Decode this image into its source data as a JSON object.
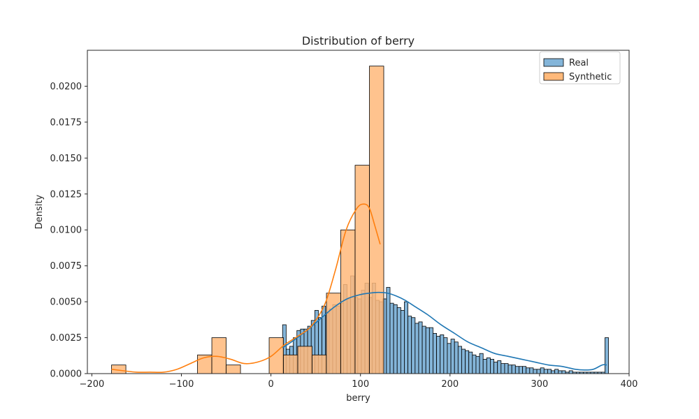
{
  "chart_data": {
    "type": "histogram",
    "title": "Distribution of berry",
    "xlabel": "berry",
    "ylabel": "Density",
    "xlim": [
      -205,
      400
    ],
    "ylim": [
      0,
      0.0225
    ],
    "x_ticks": [
      -200,
      -100,
      0,
      100,
      200,
      300,
      400
    ],
    "x_tick_labels": [
      "−200",
      "−100",
      "0",
      "100",
      "200",
      "300",
      "400"
    ],
    "y_ticks": [
      0,
      0.0025,
      0.005,
      0.0075,
      0.01,
      0.0125,
      0.015,
      0.0175,
      0.02
    ],
    "y_tick_labels": [
      "0.0000",
      "0.0025",
      "0.0050",
      "0.0075",
      "0.0100",
      "0.0125",
      "0.0150",
      "0.0175",
      "0.0200"
    ],
    "legend": {
      "placement": "top-right",
      "entries": [
        "Real",
        "Synthetic"
      ]
    },
    "grid": false,
    "series": [
      {
        "name": "Real",
        "color": "#1f77b4",
        "fill": "#84b5d9",
        "bins": {
          "start": 13,
          "end": 375,
          "width": 4
        },
        "density": [
          0.0034,
          0.0017,
          0.0019,
          0.0025,
          0.003,
          0.0031,
          0.0031,
          0.0033,
          0.0037,
          0.0044,
          0.0039,
          0.0047,
          0.0042,
          0.0045,
          0.0048,
          0.0047,
          0.0049,
          0.0062,
          0.0052,
          0.0068,
          0.0053,
          0.0052,
          0.0058,
          0.0063,
          0.0053,
          0.0063,
          0.0051,
          0.005,
          0.0052,
          0.006,
          0.0049,
          0.0048,
          0.0046,
          0.0044,
          0.005,
          0.004,
          0.0039,
          0.0035,
          0.0036,
          0.0033,
          0.0032,
          0.0032,
          0.0028,
          0.0026,
          0.0027,
          0.0025,
          0.0021,
          0.0024,
          0.0022,
          0.0019,
          0.0017,
          0.0016,
          0.0015,
          0.0013,
          0.0012,
          0.0014,
          0.001,
          0.0011,
          0.001,
          0.0008,
          0.0009,
          0.0007,
          0.0007,
          0.0006,
          0.0006,
          0.0005,
          0.0005,
          0.0005,
          0.0004,
          0.0004,
          0.0003,
          0.0003,
          0.0004,
          0.0003,
          0.0003,
          0.0002,
          0.0003,
          0.0002,
          0.0002,
          0.0001,
          0.0002,
          0.0001,
          0.0001,
          0.0001,
          0.0001,
          0.0001,
          0.0001,
          0.0001,
          0.0001,
          0.0001,
          0.0025
        ],
        "kde": {
          "x": [
            13,
            25,
            40,
            55,
            70,
            85,
            100,
            110,
            120,
            130,
            140,
            150,
            160,
            175,
            190,
            205,
            220,
            235,
            250,
            265,
            280,
            295,
            310,
            325,
            340,
            350,
            360,
            370,
            375
          ],
          "y": [
            0.0018,
            0.0023,
            0.003,
            0.0038,
            0.0046,
            0.0052,
            0.0055,
            0.0056,
            0.00565,
            0.0056,
            0.0054,
            0.0051,
            0.0047,
            0.0041,
            0.0034,
            0.0028,
            0.0022,
            0.0018,
            0.0014,
            0.0012,
            0.001,
            0.0008,
            0.0006,
            0.0005,
            0.0003,
            0.00025,
            0.0003,
            0.0006,
            0.0006
          ]
        }
      },
      {
        "name": "Synthetic",
        "color": "#ff7f0e",
        "fill": "#ffb97a",
        "bins": {
          "start": -178,
          "end": 124,
          "width": 16
        },
        "density": [
          0.0006,
          0,
          0,
          0,
          0,
          0,
          0.0013,
          0.0025,
          0.0006,
          0,
          0,
          0.0025,
          0.0013,
          0.0019,
          0.0013,
          0.0056,
          0.01,
          0.0145,
          0.0214
        ],
        "kde": {
          "x": [
            -178,
            -165,
            -150,
            -135,
            -120,
            -105,
            -90,
            -75,
            -60,
            -45,
            -30,
            -15,
            0,
            15,
            30,
            45,
            60,
            72,
            84,
            96,
            104,
            110,
            116,
            122
          ],
          "y": [
            0.0003,
            0.0002,
            0.0001,
            0.0001,
            0.0001,
            0.0003,
            0.0007,
            0.0011,
            0.0012,
            0.001,
            0.0007,
            0.0008,
            0.0012,
            0.002,
            0.0026,
            0.0033,
            0.0048,
            0.0072,
            0.01,
            0.0115,
            0.0118,
            0.0115,
            0.0103,
            0.009
          ]
        }
      }
    ]
  }
}
